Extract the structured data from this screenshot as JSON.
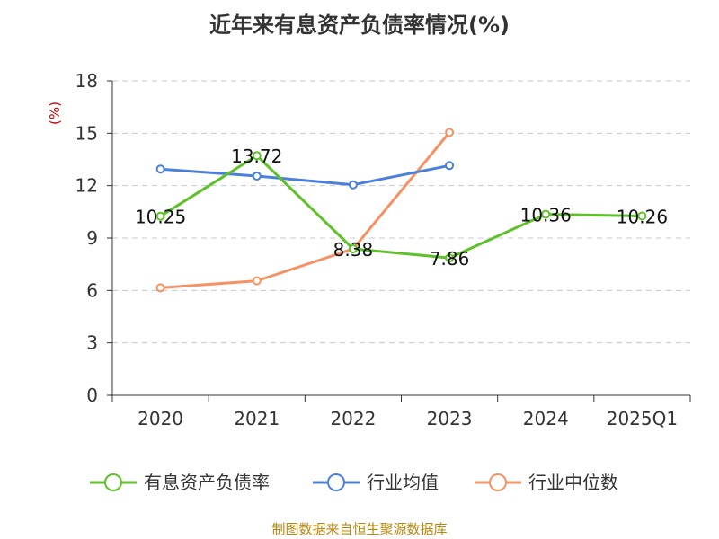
{
  "chart_data": {
    "type": "line",
    "title": "近年来有息资产负债率情况(%)",
    "ylabel": "(%)",
    "categories": [
      "2020",
      "2021",
      "2022",
      "2023",
      "2024",
      "2025Q1"
    ],
    "ylim": [
      0,
      18
    ],
    "yticks": [
      0,
      3,
      6,
      9,
      12,
      15,
      18
    ],
    "grid": true,
    "legend_position": "bottom",
    "series": [
      {
        "name": "有息资产负债率",
        "color": "#5ec12a",
        "values": [
          10.25,
          13.72,
          8.38,
          7.86,
          10.36,
          10.26
        ],
        "data_labels": [
          "10.25",
          "13.72",
          "8.38",
          "7.86",
          "10.36",
          "10.26"
        ]
      },
      {
        "name": "行业均值",
        "color": "#4a7fdb",
        "values": [
          12.95,
          12.55,
          12.05,
          13.15,
          null,
          null
        ],
        "data_labels": []
      },
      {
        "name": "行业中位数",
        "color": "#f59162",
        "values": [
          6.15,
          6.55,
          8.38,
          15.05,
          null,
          null
        ],
        "data_labels": []
      }
    ]
  },
  "footer": {
    "source": "制图数据来自恒生聚源数据库"
  }
}
